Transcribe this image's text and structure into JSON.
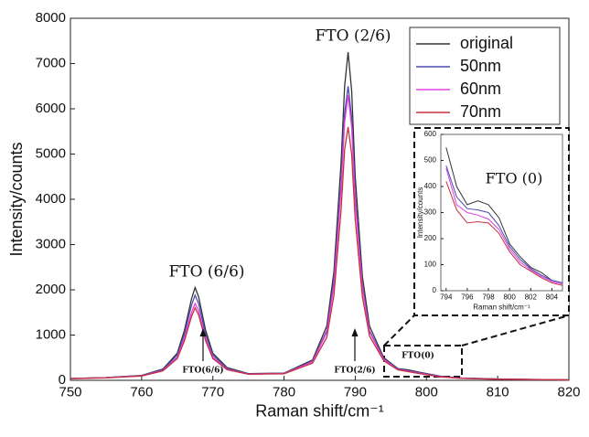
{
  "chart_data": [
    {
      "type": "line",
      "x_label": "Raman shift/cm⁻¹",
      "y_label": "Intensity/counts",
      "x": [
        750,
        755,
        760,
        763,
        765,
        766,
        767,
        767.5,
        768,
        769,
        770,
        772,
        775,
        780,
        784,
        786,
        787,
        788,
        788.5,
        789,
        789.5,
        790,
        791,
        792,
        794,
        796,
        797.5,
        799,
        802,
        805,
        810,
        815,
        820
      ],
      "series": [
        {
          "name": "original",
          "color": "#333333",
          "values": [
            40,
            60,
            110,
            250,
            600,
            1100,
            1800,
            2050,
            1850,
            1100,
            600,
            280,
            150,
            160,
            450,
            1200,
            2400,
            4800,
            6500,
            7250,
            6400,
            4500,
            2300,
            1200,
            500,
            260,
            230,
            180,
            90,
            50,
            30,
            20,
            10
          ]
        },
        {
          "name": "50nm",
          "color": "#4a4ab0",
          "values": [
            40,
            60,
            105,
            235,
            560,
            1020,
            1660,
            1880,
            1700,
            1010,
            560,
            260,
            145,
            155,
            420,
            1100,
            2200,
            4350,
            5900,
            6500,
            5800,
            4100,
            2100,
            1100,
            470,
            250,
            210,
            170,
            85,
            48,
            28,
            18,
            10
          ]
        },
        {
          "name": "60nm",
          "color": "#e040e0",
          "values": [
            38,
            58,
            100,
            220,
            510,
            930,
            1500,
            1700,
            1540,
            920,
            510,
            245,
            140,
            150,
            410,
            1060,
            2100,
            4200,
            5700,
            6300,
            5600,
            3950,
            2050,
            1070,
            460,
            240,
            200,
            160,
            80,
            45,
            26,
            17,
            10
          ]
        },
        {
          "name": "70nm",
          "color": "#c83040",
          "values": [
            36,
            55,
            95,
            210,
            480,
            870,
            1410,
            1600,
            1450,
            870,
            480,
            235,
            135,
            145,
            380,
            950,
            1880,
            3750,
            5100,
            5600,
            5000,
            3550,
            1850,
            980,
            430,
            230,
            190,
            150,
            75,
            42,
            25,
            16,
            10
          ]
        }
      ],
      "xlim": [
        750,
        820
      ],
      "xticks": [
        750,
        760,
        770,
        780,
        790,
        800,
        810,
        820
      ],
      "ylim": [
        0,
        8000
      ],
      "yticks": [
        0,
        1000,
        2000,
        3000,
        4000,
        5000,
        6000,
        7000,
        8000
      ],
      "legend": "upper right",
      "annotations": [
        "FTO (2/6)",
        "FTO (6/6)",
        "FTO(6/6)",
        "FTO(2/6)",
        "FTO(0)"
      ]
    },
    {
      "type": "line",
      "x_label": "Raman shift/cm⁻¹",
      "y_label": "Intensity/counts",
      "x": [
        794,
        795,
        796,
        797,
        798,
        799,
        800,
        801,
        802,
        803,
        804,
        805
      ],
      "series": [
        {
          "color": "#333333",
          "values": [
            550,
            400,
            330,
            345,
            330,
            280,
            180,
            130,
            90,
            70,
            40,
            30
          ]
        },
        {
          "color": "#4a4ab0",
          "values": [
            480,
            360,
            315,
            310,
            300,
            250,
            170,
            120,
            85,
            60,
            40,
            30
          ]
        },
        {
          "color": "#e040e0",
          "values": [
            470,
            330,
            300,
            290,
            275,
            235,
            160,
            110,
            80,
            55,
            35,
            25
          ]
        },
        {
          "color": "#c83040",
          "values": [
            420,
            310,
            260,
            265,
            260,
            220,
            150,
            100,
            75,
            50,
            30,
            20
          ]
        }
      ],
      "xlim": [
        793.5,
        805
      ],
      "xticks": [
        794,
        796,
        798,
        800,
        802,
        804
      ],
      "ylim": [
        0,
        600
      ],
      "yticks": [
        0,
        100,
        200,
        300,
        400,
        500,
        600
      ],
      "annotations": [
        "FTO (0)"
      ]
    }
  ]
}
